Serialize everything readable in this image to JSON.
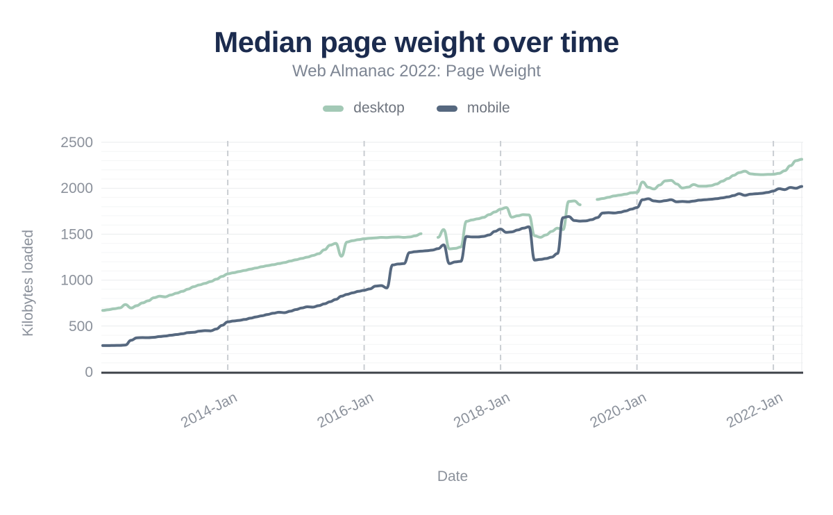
{
  "header": {
    "title": "Median page weight over time",
    "subtitle": "Web Almanac 2022: Page Weight"
  },
  "legend": {
    "position": "top",
    "items": [
      {
        "label": "desktop",
        "color": "#a3c9b6"
      },
      {
        "label": "mobile",
        "color": "#56687f"
      }
    ]
  },
  "axes": {
    "x_title": "Date",
    "y_title": "Kilobytes loaded"
  },
  "colors": {
    "title": "#1b2b4e",
    "subtitle": "#7d8593",
    "axis_text": "#8b919b",
    "legend_text": "#6e747e",
    "grid_minor": "#f4f5f6",
    "grid_major": "#e9ebed",
    "grid_dashed": "#c9cdd2",
    "axis_line": "#3d4148",
    "background": "#ffffff"
  },
  "chart_data": {
    "type": "line",
    "title": "Median page weight over time",
    "subtitle": "Web Almanac 2022: Page Weight",
    "xlabel": "Date",
    "ylabel": "Kilobytes loaded",
    "ylim": [
      0,
      2500
    ],
    "y_ticks": [
      0,
      500,
      1000,
      1500,
      2000,
      2500
    ],
    "grid": {
      "y_minor_step": 100,
      "y_major_step": 500,
      "x_dashed_at_ticks": true
    },
    "legend_position": "top",
    "x_ticks": [
      {
        "label": "2014-Jan",
        "month": "2014-01"
      },
      {
        "label": "2016-Jan",
        "month": "2016-01"
      },
      {
        "label": "2018-Jan",
        "month": "2018-01"
      },
      {
        "label": "2020-Jan",
        "month": "2020-01"
      },
      {
        "label": "2022-Jan",
        "month": "2022-01"
      }
    ],
    "months": [
      "2012-03",
      "2012-04",
      "2012-05",
      "2012-06",
      "2012-07",
      "2012-08",
      "2012-09",
      "2012-10",
      "2012-11",
      "2012-12",
      "2013-01",
      "2013-02",
      "2013-03",
      "2013-04",
      "2013-05",
      "2013-06",
      "2013-07",
      "2013-08",
      "2013-09",
      "2013-10",
      "2013-11",
      "2013-12",
      "2014-01",
      "2014-02",
      "2014-03",
      "2014-04",
      "2014-05",
      "2014-06",
      "2014-07",
      "2014-08",
      "2014-09",
      "2014-10",
      "2014-11",
      "2014-12",
      "2015-01",
      "2015-02",
      "2015-03",
      "2015-04",
      "2015-05",
      "2015-06",
      "2015-07",
      "2015-08",
      "2015-09",
      "2015-10",
      "2015-11",
      "2015-12",
      "2016-01",
      "2016-02",
      "2016-03",
      "2016-04",
      "2016-05",
      "2016-06",
      "2016-07",
      "2016-08",
      "2016-09",
      "2016-10",
      "2016-11",
      "2016-12",
      "2017-01",
      "2017-02",
      "2017-03",
      "2017-04",
      "2017-05",
      "2017-06",
      "2017-07",
      "2017-08",
      "2017-09",
      "2017-10",
      "2017-11",
      "2017-12",
      "2018-01",
      "2018-02",
      "2018-03",
      "2018-04",
      "2018-05",
      "2018-06",
      "2018-07",
      "2018-08",
      "2018-09",
      "2018-10",
      "2018-11",
      "2018-12",
      "2019-01",
      "2019-02",
      "2019-03",
      "2019-04",
      "2019-05",
      "2019-06",
      "2019-07",
      "2019-08",
      "2019-09",
      "2019-10",
      "2019-11",
      "2019-12",
      "2020-01",
      "2020-02",
      "2020-03",
      "2020-04",
      "2020-05",
      "2020-06",
      "2020-07",
      "2020-08",
      "2020-09",
      "2020-10",
      "2020-11",
      "2020-12",
      "2021-01",
      "2021-02",
      "2021-03",
      "2021-04",
      "2021-05",
      "2021-06",
      "2021-07",
      "2021-08",
      "2021-09",
      "2021-10",
      "2021-11",
      "2021-12",
      "2022-01",
      "2022-02",
      "2022-03",
      "2022-04",
      "2022-05",
      "2022-06"
    ],
    "series": [
      {
        "name": "desktop",
        "color": "#a3c9b6",
        "values": [
          670,
          678,
          688,
          698,
          735,
          696,
          722,
          752,
          775,
          808,
          825,
          818,
          838,
          858,
          878,
          902,
          928,
          948,
          965,
          985,
          1010,
          1040,
          1068,
          1080,
          1094,
          1106,
          1120,
          1132,
          1146,
          1158,
          1168,
          1180,
          1192,
          1208,
          1222,
          1236,
          1250,
          1268,
          1288,
          1330,
          1380,
          1400,
          1260,
          1415,
          1430,
          1440,
          1450,
          1456,
          1460,
          1465,
          1464,
          1468,
          1470,
          1465,
          1470,
          1482,
          1505,
          null,
          null,
          1465,
          1550,
          1340,
          1345,
          1360,
          1640,
          1655,
          1668,
          1682,
          1712,
          1742,
          1772,
          1790,
          1685,
          1700,
          1712,
          1710,
          1482,
          1466,
          1492,
          1530,
          1566,
          1550,
          1856,
          1862,
          1820,
          null,
          null,
          1878,
          1888,
          1902,
          1916,
          1925,
          1935,
          1950,
          1955,
          2068,
          2010,
          1992,
          2035,
          2080,
          2085,
          2046,
          2002,
          2012,
          2040,
          2022,
          2022,
          2028,
          2046,
          2076,
          2105,
          2140,
          2170,
          2186,
          2156,
          2150,
          2148,
          2150,
          2152,
          2162,
          2190,
          2245,
          2300,
          2315
        ]
      },
      {
        "name": "mobile",
        "color": "#56687f",
        "values": [
          288,
          288,
          289,
          290,
          294,
          345,
          372,
          375,
          374,
          378,
          386,
          392,
          400,
          408,
          416,
          428,
          432,
          445,
          450,
          448,
          468,
          508,
          545,
          555,
          562,
          572,
          586,
          600,
          612,
          626,
          640,
          650,
          646,
          662,
          680,
          696,
          710,
          706,
          722,
          742,
          765,
          790,
          825,
          845,
          862,
          878,
          890,
          905,
          935,
          940,
          915,
          1165,
          1175,
          1180,
          1300,
          1310,
          1315,
          1320,
          1326,
          1342,
          1383,
          1180,
          1198,
          1205,
          1475,
          1470,
          1470,
          1476,
          1492,
          1530,
          1556,
          1520,
          1525,
          1545,
          1565,
          1580,
          1218,
          1225,
          1235,
          1250,
          1290,
          1680,
          1692,
          1648,
          1642,
          1645,
          1658,
          1680,
          1730,
          1734,
          1730,
          1738,
          1752,
          1772,
          1790,
          1875,
          1885,
          1862,
          1855,
          1865,
          1875,
          1852,
          1856,
          1852,
          1860,
          1870,
          1875,
          1880,
          1886,
          1895,
          1905,
          1920,
          1940,
          1922,
          1935,
          1940,
          1945,
          1955,
          1970,
          1995,
          1985,
          2008,
          2000,
          2020
        ]
      }
    ]
  }
}
